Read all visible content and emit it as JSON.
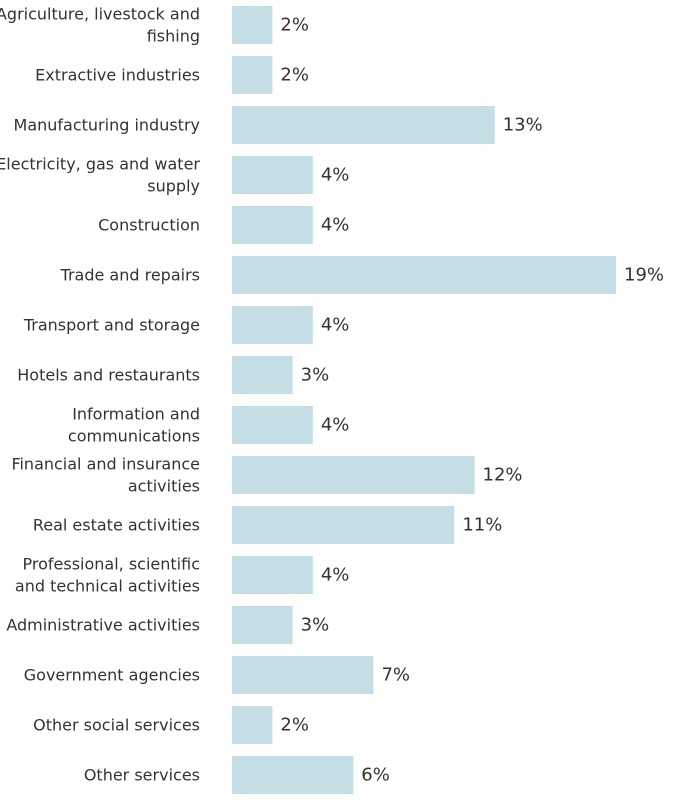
{
  "chart_data": {
    "type": "bar",
    "orientation": "horizontal",
    "title": "",
    "xlabel": "",
    "ylabel": "",
    "xlim": [
      0,
      19
    ],
    "grid": false,
    "legend": "none",
    "bar_color": "#c5dee6",
    "text_color": "#333333",
    "categories": [
      [
        "Agriculture, livestock and",
        "fishing"
      ],
      [
        "Extractive industries"
      ],
      [
        "Manufacturing industry"
      ],
      [
        "Electricity, gas and water",
        "supply"
      ],
      [
        "Construction"
      ],
      [
        "Trade and repairs"
      ],
      [
        "Transport and storage"
      ],
      [
        "Hotels and restaurants"
      ],
      [
        "Information and",
        "communications"
      ],
      [
        "Financial and insurance",
        "activities"
      ],
      [
        "Real estate activities"
      ],
      [
        "Professional, scientific",
        "and technical activities"
      ],
      [
        "Administrative activities"
      ],
      [
        "Government agencies"
      ],
      [
        "Other social services"
      ],
      [
        "Other services"
      ]
    ],
    "values": [
      2,
      2,
      13,
      4,
      4,
      19,
      4,
      3,
      4,
      12,
      11,
      4,
      3,
      7,
      2,
      6
    ],
    "value_labels": [
      "2%",
      "2%",
      "13%",
      "4%",
      "4%",
      "19%",
      "4%",
      "3%",
      "4%",
      "12%",
      "11%",
      "4%",
      "3%",
      "7%",
      "2%",
      "6%"
    ]
  }
}
